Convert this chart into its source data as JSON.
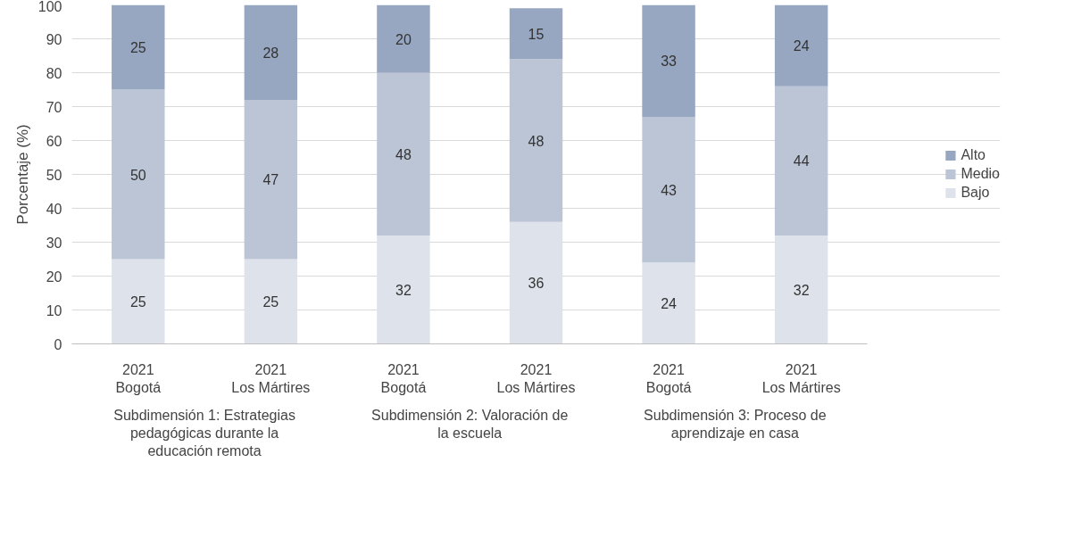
{
  "chart_data": {
    "type": "bar",
    "stacked": true,
    "data_labels": true,
    "legend": "right",
    "grid": "y",
    "ylabel": "Porcentaje (%)",
    "categories": [
      "2021\nBogotá",
      "2021\nLos Mártires",
      "2021\nBogotá",
      "2021\nLos Mártires",
      "2021\nBogotá",
      "2021\nLos Mártires"
    ],
    "annotations": [
      "Subdimensión 1: Estrategias\npedagógicas durante la\neducación remota",
      "Subdimensión 2: Valoración de\nla escuela",
      "Subdimensión 3: Proceso de\naprendizaje en casa"
    ],
    "ylim": [
      0,
      100
    ],
    "yticks": [
      0,
      10,
      20,
      30,
      40,
      50,
      60,
      70,
      80,
      90,
      100
    ],
    "series": [
      {
        "name": "Bajo",
        "color": "#dee3eb",
        "values": [
          25,
          25,
          32,
          36,
          24,
          32
        ]
      },
      {
        "name": "Medio",
        "color": "#bcc5d6",
        "values": [
          50,
          47,
          48,
          48,
          43,
          44
        ]
      },
      {
        "name": "Alto",
        "color": "#97a6c1",
        "values": [
          25,
          28,
          20,
          15,
          33,
          24
        ]
      }
    ]
  }
}
